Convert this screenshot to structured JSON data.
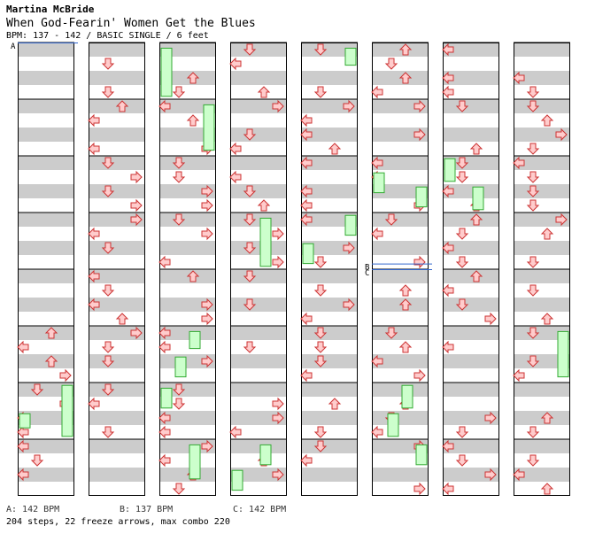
{
  "song": {
    "artist": "Martina McBride",
    "title": "When God-Fearin' Women Get the Blues",
    "info": "BPM: 137 - 142 / BASIC SINGLE / 6 feet"
  },
  "footer": {
    "bpm_changes": [
      {
        "text": "A: 142 BPM"
      },
      {
        "text": "B: 137 BPM"
      },
      {
        "text": "C: 142 BPM"
      }
    ],
    "stats": "204 steps, 22 freeze arrows, max combo 220"
  },
  "markers": [
    {
      "label": "A",
      "column": 0,
      "measure": 0
    },
    {
      "label": "B",
      "column": 5,
      "measure": 3.9
    },
    {
      "label": "C",
      "column": 5,
      "measure": 4.0
    }
  ],
  "colors": {
    "stripe": "#cccccc",
    "arrow_fill": "#ffcccc",
    "arrow_stroke": "#cc3333",
    "freeze_fill": "#ccffcc",
    "freeze_stroke": "#33aa33",
    "marker_line": "#3366cc"
  },
  "chart_data": {
    "type": "step-chart",
    "lanes": [
      "left",
      "down",
      "up",
      "right"
    ],
    "measures_per_column": 8,
    "columns": 8,
    "freezes": [
      {
        "col": 0,
        "lane": 0,
        "start": 6.55,
        "end": 6.8
      },
      {
        "col": 0,
        "lane": 3,
        "start": 6.05,
        "end": 6.95
      },
      {
        "col": 2,
        "lane": 0,
        "start": 0.1,
        "end": 0.95
      },
      {
        "col": 2,
        "lane": 3,
        "start": 1.1,
        "end": 1.9
      },
      {
        "col": 2,
        "lane": 2,
        "start": 5.1,
        "end": 5.4
      },
      {
        "col": 2,
        "lane": 1,
        "start": 5.55,
        "end": 5.9
      },
      {
        "col": 2,
        "lane": 0,
        "start": 6.1,
        "end": 6.45
      },
      {
        "col": 2,
        "lane": 2,
        "start": 7.1,
        "end": 7.7
      },
      {
        "col": 3,
        "lane": 2,
        "start": 3.1,
        "end": 3.95
      },
      {
        "col": 3,
        "lane": 2,
        "start": 7.1,
        "end": 7.45
      },
      {
        "col": 3,
        "lane": 0,
        "start": 7.55,
        "end": 7.9
      },
      {
        "col": 4,
        "lane": 3,
        "start": 0.1,
        "end": 0.4
      },
      {
        "col": 4,
        "lane": 3,
        "start": 3.05,
        "end": 3.4
      },
      {
        "col": 4,
        "lane": 0,
        "start": 3.55,
        "end": 3.9
      },
      {
        "col": 5,
        "lane": 0,
        "start": 2.3,
        "end": 2.65
      },
      {
        "col": 5,
        "lane": 3,
        "start": 2.55,
        "end": 2.9
      },
      {
        "col": 5,
        "lane": 2,
        "start": 6.05,
        "end": 6.45
      },
      {
        "col": 5,
        "lane": 1,
        "start": 6.55,
        "end": 6.95
      },
      {
        "col": 5,
        "lane": 3,
        "start": 7.1,
        "end": 7.45
      },
      {
        "col": 6,
        "lane": 0,
        "start": 2.05,
        "end": 2.45
      },
      {
        "col": 6,
        "lane": 2,
        "start": 2.55,
        "end": 2.95
      },
      {
        "col": 7,
        "lane": 3,
        "start": 5.1,
        "end": 5.9
      }
    ]
  }
}
